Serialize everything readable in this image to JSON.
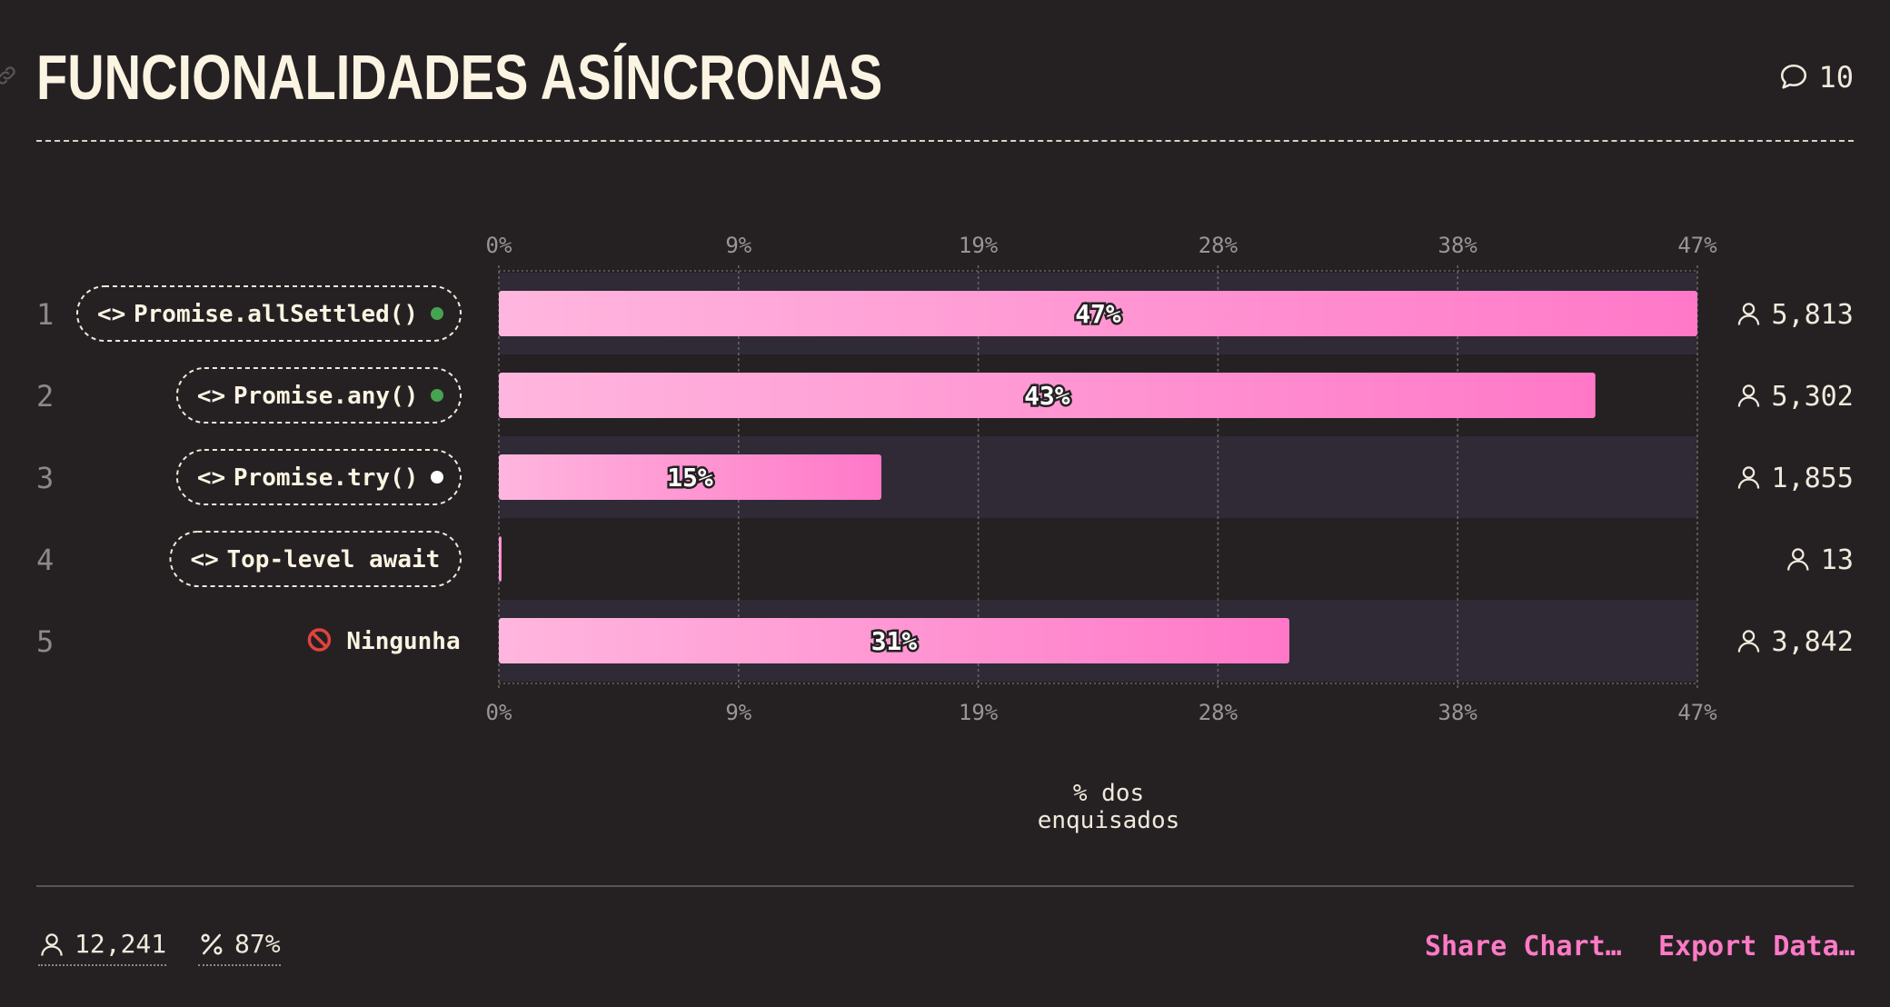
{
  "title": "FUNCIONALIDADES ASÍNCRONAS",
  "comments_count": "10",
  "chart_data": {
    "type": "bar",
    "orientation": "horizontal",
    "xlabel": "% dos enquisados",
    "xlim": [
      0,
      47
    ],
    "tick_labels": [
      "0%",
      "9%",
      "19%",
      "28%",
      "38%",
      "47%"
    ],
    "grid": true,
    "rows": [
      {
        "rank": "1",
        "label": "Promise.allSettled()",
        "percent": 47,
        "percent_label": "47%",
        "count": "5,813",
        "indicator": "green",
        "code": true
      },
      {
        "rank": "2",
        "label": "Promise.any()",
        "percent": 43,
        "percent_label": "43%",
        "count": "5,302",
        "indicator": "green",
        "code": true
      },
      {
        "rank": "3",
        "label": "Promise.try()",
        "percent": 15,
        "percent_label": "15%",
        "count": "1,855",
        "indicator": "white",
        "code": true
      },
      {
        "rank": "4",
        "label": "Top-level await",
        "percent": 0.1,
        "percent_label": "",
        "count": "13",
        "indicator": "none",
        "code": true
      },
      {
        "rank": "5",
        "label": "Ningunha",
        "percent": 31,
        "percent_label": "31%",
        "count": "3,842",
        "indicator": "none",
        "code": false
      }
    ]
  },
  "footer": {
    "respondents": "12,241",
    "percent": "87%",
    "share_label": "Share Chart…",
    "export_label": "Export Data…"
  },
  "colors": {
    "background": "#252123",
    "bar_start": "#ffb6de",
    "bar_end": "#ff78c8",
    "accent": "#ff7ac6",
    "indicator_green": "#46a34f",
    "indicator_white": "#ffffff",
    "row_alt": "#2f2a35"
  }
}
